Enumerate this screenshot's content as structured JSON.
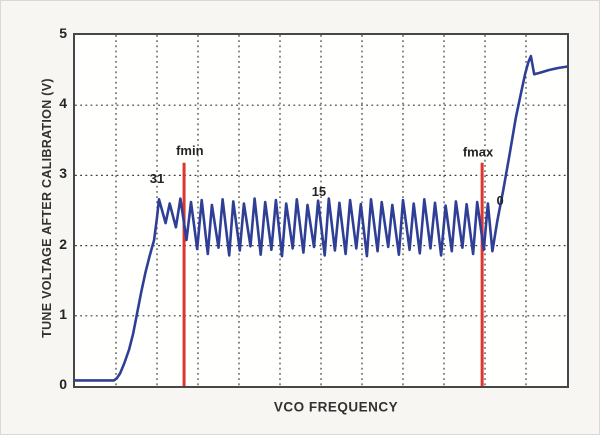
{
  "figure": {
    "background": "#f7f6f2",
    "plot_background": "#fffffe",
    "border_color": "#474747"
  },
  "chart_data": {
    "type": "line",
    "title": "",
    "xlabel": "VCO FREQUENCY",
    "ylabel": "TUNE VOLTAGE AFTER CALIBRATION (V)",
    "xlim": [
      0,
      12
    ],
    "ylim": [
      0,
      5
    ],
    "yticks": [
      0,
      1,
      2,
      3,
      4,
      5
    ],
    "xticks": [],
    "grid": {
      "on": true,
      "style": "dotted",
      "color": "#3c3c3c",
      "x_lines": [
        1,
        2,
        3,
        4,
        5,
        6,
        7,
        8,
        9,
        10,
        11
      ],
      "y_lines": [
        1,
        2,
        3,
        4
      ]
    },
    "series": [
      {
        "name": "tune-voltage-curve",
        "color": "#2f3f96",
        "width": 2.6,
        "points": [
          [
            0,
            0.08
          ],
          [
            0.95,
            0.08
          ],
          [
            1.02,
            0.11
          ],
          [
            1.1,
            0.18
          ],
          [
            1.2,
            0.32
          ],
          [
            1.32,
            0.52
          ],
          [
            1.42,
            0.75
          ],
          [
            1.52,
            1.05
          ],
          [
            1.62,
            1.35
          ],
          [
            1.72,
            1.62
          ],
          [
            1.82,
            1.85
          ],
          [
            1.93,
            2.08
          ],
          [
            2.0,
            2.4
          ],
          [
            2.05,
            2.66
          ],
          [
            2.21,
            2.32
          ],
          [
            2.31,
            2.6
          ],
          [
            2.46,
            2.26
          ],
          [
            2.57,
            2.67
          ],
          [
            2.72,
            2.08
          ],
          [
            2.83,
            2.62
          ],
          [
            2.98,
            1.95
          ],
          [
            3.09,
            2.65
          ],
          [
            3.24,
            1.88
          ],
          [
            3.34,
            2.58
          ],
          [
            3.5,
            1.97
          ],
          [
            3.6,
            2.66
          ],
          [
            3.76,
            1.86
          ],
          [
            3.86,
            2.63
          ],
          [
            4.02,
            1.93
          ],
          [
            4.12,
            2.6
          ],
          [
            4.28,
            1.99
          ],
          [
            4.38,
            2.67
          ],
          [
            4.53,
            1.87
          ],
          [
            4.64,
            2.62
          ],
          [
            4.79,
            1.94
          ],
          [
            4.9,
            2.65
          ],
          [
            5.05,
            1.85
          ],
          [
            5.15,
            2.6
          ],
          [
            5.31,
            1.96
          ],
          [
            5.41,
            2.66
          ],
          [
            5.57,
            1.9
          ],
          [
            5.67,
            2.58
          ],
          [
            5.83,
            1.98
          ],
          [
            5.93,
            2.64
          ],
          [
            6.09,
            1.86
          ],
          [
            6.19,
            2.67
          ],
          [
            6.34,
            1.93
          ],
          [
            6.45,
            2.61
          ],
          [
            6.6,
            1.88
          ],
          [
            6.71,
            2.65
          ],
          [
            6.86,
            1.96
          ],
          [
            6.97,
            2.59
          ],
          [
            7.12,
            1.85
          ],
          [
            7.22,
            2.66
          ],
          [
            7.38,
            1.92
          ],
          [
            7.48,
            2.62
          ],
          [
            7.64,
            1.98
          ],
          [
            7.74,
            2.58
          ],
          [
            7.9,
            1.87
          ],
          [
            8.0,
            2.65
          ],
          [
            8.16,
            1.94
          ],
          [
            8.26,
            2.6
          ],
          [
            8.41,
            1.89
          ],
          [
            8.52,
            2.66
          ],
          [
            8.67,
            1.96
          ],
          [
            8.78,
            2.61
          ],
          [
            8.93,
            1.86
          ],
          [
            9.04,
            2.57
          ],
          [
            9.19,
            1.92
          ],
          [
            9.29,
            2.63
          ],
          [
            9.45,
            1.97
          ],
          [
            9.55,
            2.59
          ],
          [
            9.71,
            1.88
          ],
          [
            9.81,
            2.62
          ],
          [
            9.97,
            1.94
          ],
          [
            10.07,
            2.6
          ],
          [
            10.18,
            1.92
          ],
          [
            10.3,
            2.35
          ],
          [
            10.45,
            2.8
          ],
          [
            10.6,
            3.3
          ],
          [
            10.75,
            3.82
          ],
          [
            10.88,
            4.18
          ],
          [
            10.98,
            4.45
          ],
          [
            11.06,
            4.62
          ],
          [
            11.12,
            4.7
          ],
          [
            11.2,
            4.44
          ],
          [
            11.33,
            4.46
          ],
          [
            11.55,
            4.5
          ],
          [
            11.78,
            4.53
          ],
          [
            12,
            4.55
          ]
        ]
      }
    ],
    "marker_lines": [
      {
        "name": "fmin-line",
        "label": "fmin",
        "x": 2.66,
        "y0": 0,
        "y1": 3.18,
        "label_x": 2.8,
        "label_y": 3.29,
        "color": "#df352f"
      },
      {
        "name": "fmax-line",
        "label": "fmax",
        "x": 9.93,
        "y0": 0,
        "y1": 3.18,
        "label_x": 9.83,
        "label_y": 3.27,
        "color": "#df352f"
      }
    ],
    "annotations": [
      {
        "name": "band-label-31",
        "text": "31",
        "x": 2.0,
        "y": 2.89
      },
      {
        "name": "band-label-15",
        "text": "15",
        "x": 5.95,
        "y": 2.71
      },
      {
        "name": "band-label-0",
        "text": "0",
        "x": 10.37,
        "y": 2.58
      }
    ],
    "legend": null
  }
}
